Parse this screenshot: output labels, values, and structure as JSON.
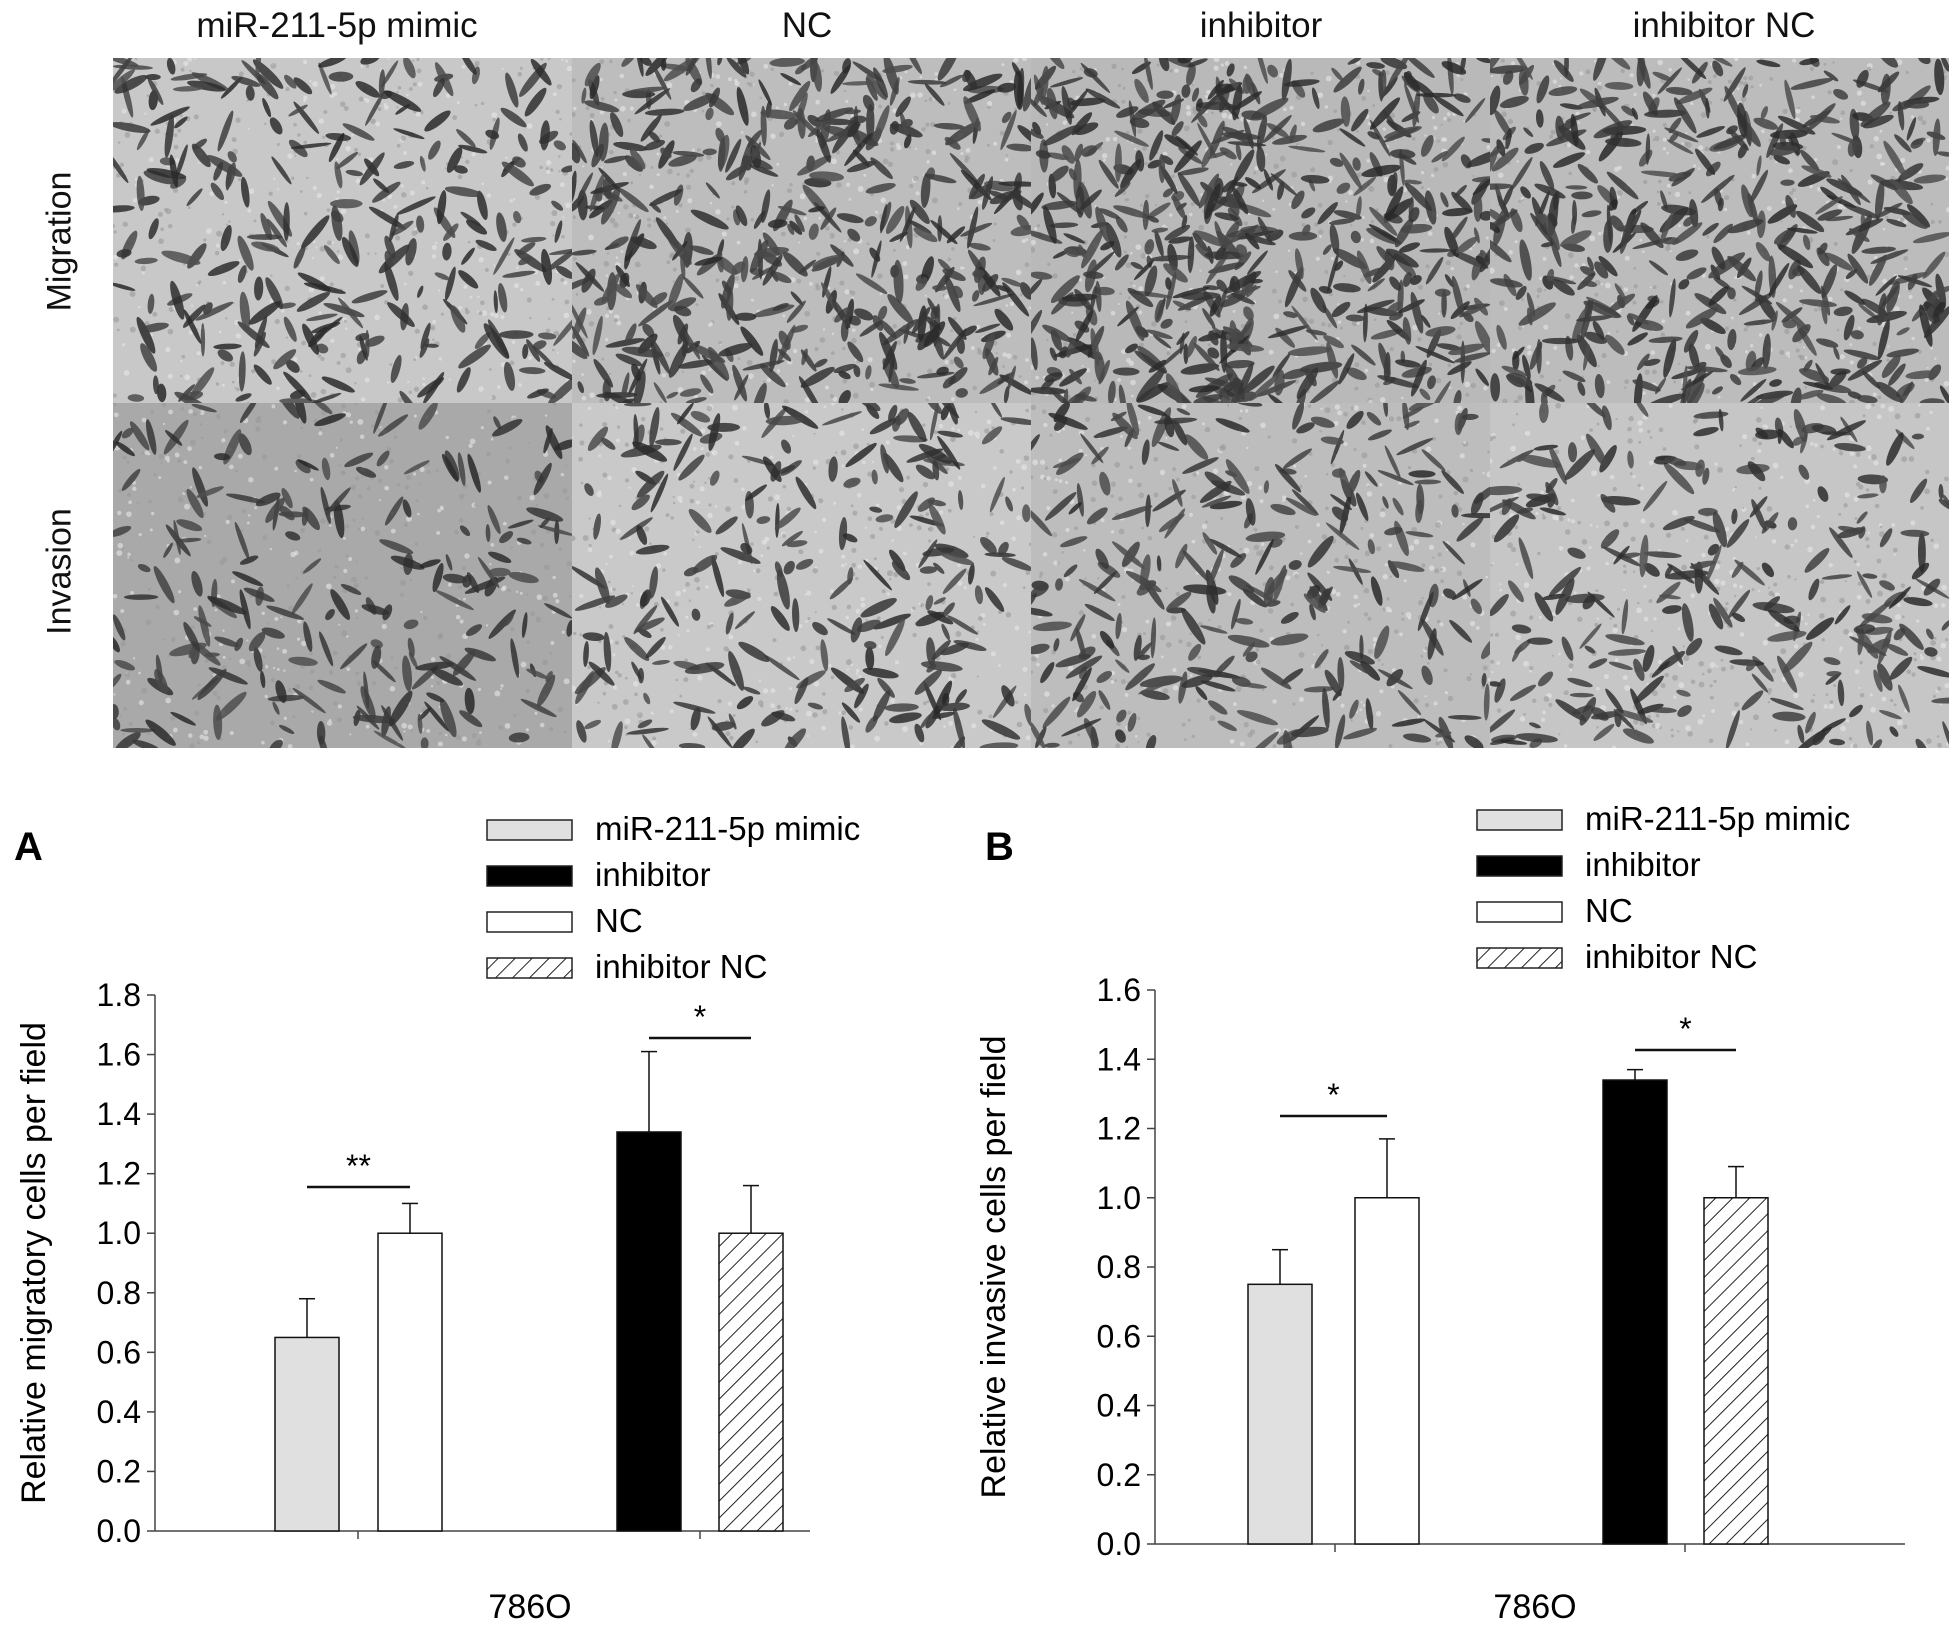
{
  "figure": {
    "columns": [
      "miR-211-5p mimic",
      "NC",
      "inhibitor",
      "inhibitor NC"
    ],
    "rows": [
      "Migration",
      "Invasion"
    ]
  },
  "legend": {
    "items": [
      {
        "label": "miR-211-5p mimic",
        "fill": "#e0e0e0"
      },
      {
        "label": "inhibitor",
        "fill": "#000000"
      },
      {
        "label": "NC",
        "fill": "#ffffff"
      },
      {
        "label": "inhibitor NC",
        "fill": "hatch"
      }
    ]
  },
  "chart_data": [
    {
      "panel": "A",
      "type": "bar",
      "ylabel": "Relative migratory cells per field",
      "xlabel": "786O",
      "ylim": [
        0,
        1.8
      ],
      "yticks": [
        "0.0",
        "0.2",
        "0.4",
        "0.6",
        "0.8",
        "1.0",
        "1.2",
        "1.4",
        "1.6",
        "1.8"
      ],
      "bars": [
        {
          "series": "miR-211-5p mimic",
          "value": 0.65,
          "error": 0.13
        },
        {
          "series": "NC",
          "value": 1.0,
          "error": 0.1
        },
        {
          "series": "inhibitor",
          "value": 1.34,
          "error": 0.27
        },
        {
          "series": "inhibitor NC",
          "value": 1.0,
          "error": 0.16
        }
      ],
      "significance": [
        {
          "between": [
            "miR-211-5p mimic",
            "NC"
          ],
          "label": "**"
        },
        {
          "between": [
            "inhibitor",
            "inhibitor NC"
          ],
          "label": "*"
        }
      ]
    },
    {
      "panel": "B",
      "type": "bar",
      "ylabel": "Relative invasive cells per field",
      "xlabel": "786O",
      "ylim": [
        0,
        1.6
      ],
      "yticks": [
        "0.0",
        "0.2",
        "0.4",
        "0.6",
        "0.8",
        "1.0",
        "1.2",
        "1.4",
        "1.6"
      ],
      "bars": [
        {
          "series": "miR-211-5p mimic",
          "value": 0.75,
          "error": 0.1
        },
        {
          "series": "NC",
          "value": 1.0,
          "error": 0.17
        },
        {
          "series": "inhibitor",
          "value": 1.34,
          "error": 0.03
        },
        {
          "series": "inhibitor NC",
          "value": 1.0,
          "error": 0.09
        }
      ],
      "significance": [
        {
          "between": [
            "miR-211-5p mimic",
            "NC"
          ],
          "label": "*"
        },
        {
          "between": [
            "inhibitor",
            "inhibitor NC"
          ],
          "label": "*"
        }
      ]
    }
  ]
}
